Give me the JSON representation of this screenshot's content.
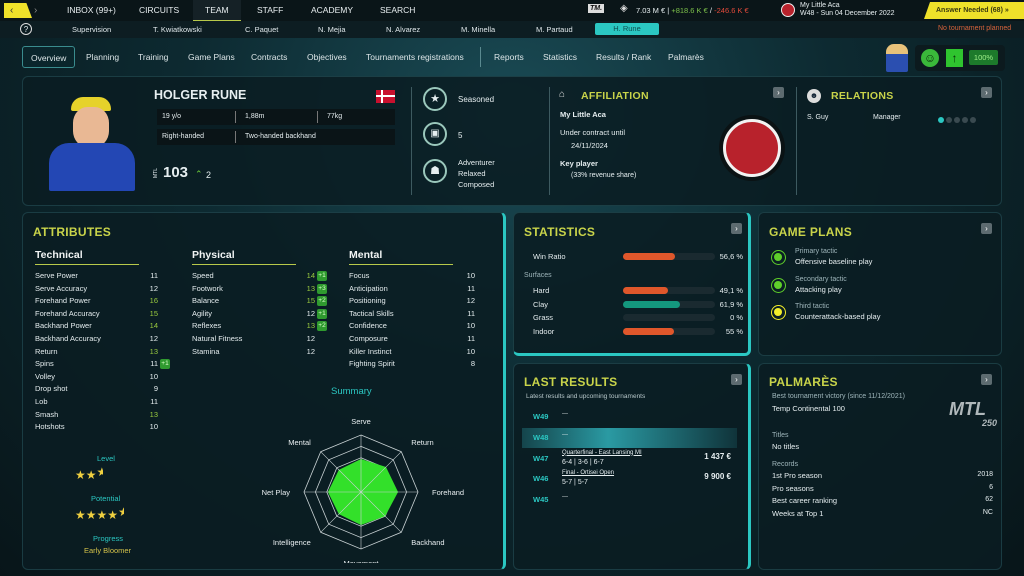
{
  "topnav": {
    "items": [
      "INBOX (99+)",
      "CIRCUITS",
      "TEAM",
      "STAFF",
      "ACADEMY",
      "SEARCH"
    ],
    "active": "TEAM"
  },
  "finance": {
    "logo": "TM.",
    "balance": "7.03 M €",
    "income": "+818.6 K €",
    "expense": "-246.6 K €",
    "sep1": "|",
    "sep2": "/"
  },
  "club": {
    "name": "My Little Aca",
    "date": "W48 - Sun 04 December 2022"
  },
  "alert": {
    "label": "Answer Needed (68)",
    "sub": "No tournament planned"
  },
  "team_members": [
    "Supervision",
    "T. Kwiatkowski",
    "C. Paquet",
    "N. Mejia",
    "N. Alvarez",
    "M. Minella",
    "M. Partaud",
    "H. Rune"
  ],
  "tabs": [
    "Overview",
    "Planning",
    "Training",
    "Game Plans",
    "Contracts",
    "Objectives",
    "Tournaments registrations",
    "Reports",
    "Statistics",
    "Results / Rank",
    "Palmarès"
  ],
  "status": {
    "condition": "100%"
  },
  "player": {
    "name": "HOLGER RUNE",
    "age": "19 y/o",
    "height": "1,88m",
    "weight": "77kg",
    "hand": "Right-handed",
    "backhand": "Two-handed backhand",
    "rank_label": "MTL",
    "rank": "103",
    "rank_change": "2",
    "experience": "Seasoned",
    "fame": "5",
    "personality": [
      "Adventurer",
      "Relaxed",
      "Composed"
    ]
  },
  "affiliation": {
    "title": "AFFILIATION",
    "club": "My Little Aca",
    "contract_label": "Under contract until",
    "contract_date": "24/11/2024",
    "key_label": "Key player",
    "key_detail": "(33% revenue share)"
  },
  "relations": {
    "title": "RELATIONS",
    "items": [
      {
        "name": "S. Guy",
        "role": "Manager",
        "level": 1,
        "max": 5
      }
    ]
  },
  "attributes": {
    "title": "ATTRIBUTES",
    "technical": {
      "title": "Technical",
      "items": [
        [
          "Serve Power",
          "11",
          ""
        ],
        [
          "Serve Accuracy",
          "12",
          ""
        ],
        [
          "Forehand Power",
          "16",
          ""
        ],
        [
          "Forehand Accuracy",
          "15",
          ""
        ],
        [
          "Backhand Power",
          "14",
          ""
        ],
        [
          "Backhand Accuracy",
          "12",
          ""
        ],
        [
          "Return",
          "13",
          ""
        ],
        [
          "Spins",
          "11",
          "+1"
        ],
        [
          "Volley",
          "10",
          ""
        ],
        [
          "Drop shot",
          "9",
          ""
        ],
        [
          "Lob",
          "11",
          ""
        ],
        [
          "Smash",
          "13",
          ""
        ],
        [
          "Hotshots",
          "10",
          ""
        ]
      ]
    },
    "physical": {
      "title": "Physical",
      "items": [
        [
          "Speed",
          "14",
          "+1"
        ],
        [
          "Footwork",
          "13",
          "+3"
        ],
        [
          "Balance",
          "15",
          "+2"
        ],
        [
          "Agility",
          "12",
          "+1"
        ],
        [
          "Reflexes",
          "13",
          "+2"
        ],
        [
          "Natural Fitness",
          "12",
          ""
        ],
        [
          "Stamina",
          "12",
          ""
        ]
      ]
    },
    "mental": {
      "title": "Mental",
      "items": [
        [
          "Focus",
          "10",
          ""
        ],
        [
          "Anticipation",
          "11",
          ""
        ],
        [
          "Positioning",
          "12",
          ""
        ],
        [
          "Tactical Skills",
          "11",
          ""
        ],
        [
          "Confidence",
          "10",
          ""
        ],
        [
          "Composure",
          "11",
          ""
        ],
        [
          "Killer Instinct",
          "10",
          ""
        ],
        [
          "Fighting Spirit",
          "8",
          ""
        ]
      ]
    },
    "level_label": "Level",
    "level_stars": 2.5,
    "potential_label": "Potential",
    "potential_stars": 4.5,
    "progress_label": "Progress",
    "progress": "Early Bloomer"
  },
  "summary": {
    "title": "Summary",
    "axes": [
      "Serve",
      "Return",
      "Forehand",
      "Backhand",
      "Movement",
      "Intelligence",
      "Net Play",
      "Mental"
    ],
    "values": [
      0.58,
      0.62,
      0.65,
      0.6,
      0.58,
      0.55,
      0.58,
      0.55
    ]
  },
  "statistics": {
    "title": "STATISTICS",
    "win_label": "Win Ratio",
    "win": 56.6,
    "win_text": "56,6 %",
    "surfaces_label": "Surfaces",
    "surfaces": [
      {
        "name": "Hard",
        "value": 49.1,
        "text": "49,1 %",
        "color": "#e0572b"
      },
      {
        "name": "Clay",
        "value": 61.9,
        "text": "61,9 %",
        "color": "#14987e"
      },
      {
        "name": "Grass",
        "value": 0,
        "text": "0 %",
        "color": "#e0572b"
      },
      {
        "name": "Indoor",
        "value": 55,
        "text": "55 %",
        "color": "#e0572b"
      }
    ]
  },
  "game_plans": {
    "title": "GAME PLANS",
    "items": [
      {
        "label": "Primary tactic",
        "value": "Offensive baseline play",
        "color": "#5fcf2a"
      },
      {
        "label": "Secondary tactic",
        "value": "Attacking play",
        "color": "#5fcf2a"
      },
      {
        "label": "Third tactic",
        "value": "Counterattack-based play",
        "color": "#f2ee2a"
      }
    ]
  },
  "last_results": {
    "title": "LAST RESULTS",
    "subtitle": "Latest results and upcoming tournaments",
    "rows": [
      {
        "week": "W49",
        "title": "---",
        "score": "",
        "prize": ""
      },
      {
        "week": "W48",
        "title": "---",
        "score": "",
        "prize": ""
      },
      {
        "week": "W47",
        "title": "Quarterfinal - East Lansing MI",
        "score": "6-4 | 3-6 | 6-7",
        "prize": "1 437 €"
      },
      {
        "week": "W46",
        "title": "Final - Ortisei Open",
        "score": "5-7 | 5-7",
        "prize": "9 900 €"
      },
      {
        "week": "W45",
        "title": "---",
        "score": "",
        "prize": ""
      }
    ]
  },
  "palmares": {
    "title": "PALMARÈS",
    "best_label": "Best tournament victory (since 11/12/2021)",
    "best": "Temp Continental 100",
    "logo": "MTL MASTERS 250",
    "titles_label": "Titles",
    "titles": "No titles",
    "records_label": "Records",
    "records": [
      [
        "1st Pro season",
        "2018"
      ],
      [
        "Pro seasons",
        "6"
      ],
      [
        "Best career ranking",
        "62"
      ],
      [
        "Weeks at Top 1",
        "NC"
      ]
    ]
  }
}
